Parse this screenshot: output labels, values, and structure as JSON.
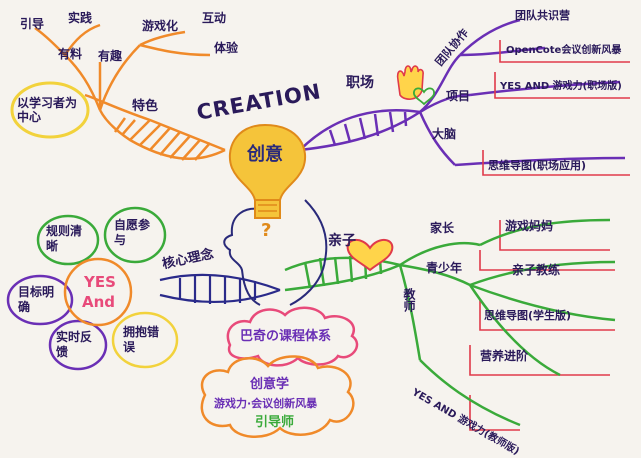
{
  "center": {
    "title": "CREATION",
    "bulb": "创意",
    "mark": "?"
  },
  "left_top": {
    "bubble": "以学习者为中心",
    "branch": "特色",
    "leaves": [
      "引导",
      "实践",
      "有料",
      "有趣",
      "游戏化",
      "互动",
      "体验"
    ]
  },
  "right_top": {
    "branch": "职场",
    "sub": [
      "团队协作",
      "项目",
      "大脑"
    ],
    "items": [
      "团队共识营",
      "OpenCote会议创新风暴",
      "YES AND 游戏力(职场版)",
      "思维导图(职场应用)"
    ]
  },
  "left_bottom": {
    "branch": "核心理念",
    "flower_center_1": "YES",
    "flower_center_2": "And",
    "petals": [
      "规则清晰",
      "自愿参与",
      "目标明确",
      "拥抱错误",
      "实时反馈"
    ]
  },
  "right_bottom": {
    "branch": "亲子",
    "sub": [
      "家长",
      "青少年",
      "教师"
    ],
    "items": [
      "游戏妈妈",
      "亲子教练",
      "思维导图(学生版)",
      "营养进阶",
      "YES AND 游戏力(教师版)"
    ]
  },
  "cloud": {
    "title": "巴奇の课程体系",
    "line1": "创意学",
    "line2": "游戏力·会议创新风暴",
    "line3": "引导师"
  },
  "colors": {
    "orange": "#f08a2a",
    "purple": "#6a2fb5",
    "green": "#3aaa3a",
    "red": "#e03a4a",
    "pink": "#e84a7a",
    "yellow": "#f2d23c",
    "ink": "#2a1a5a"
  }
}
